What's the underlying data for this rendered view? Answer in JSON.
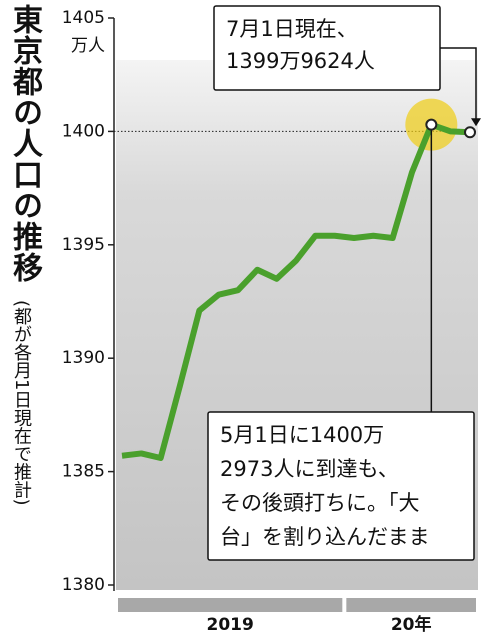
{
  "chart_data": {
    "type": "line",
    "title": "東京都の人口の推移",
    "subtitle": "(都が各月1日現在で推計)",
    "y_unit": "万人",
    "categories": [
      null,
      null,
      null,
      null,
      null,
      null,
      null,
      null,
      null,
      null,
      null,
      null,
      null,
      null,
      null,
      null,
      null,
      null,
      null
    ],
    "x_groups": [
      {
        "label": "2019",
        "count": 12
      },
      {
        "label": "20年",
        "count": 7
      }
    ],
    "series": [
      {
        "name": "人口",
        "color": "#4aa02c",
        "values": [
          1385.7,
          1385.8,
          1385.6,
          1388.8,
          1392.1,
          1392.8,
          1393.0,
          1393.9,
          1393.5,
          1394.3,
          1395.4,
          1395.4,
          1395.3,
          1395.4,
          1395.3,
          1398.2,
          1400.2973,
          1400.0,
          1399.9624
        ]
      }
    ],
    "ylim": [
      1380,
      1405
    ],
    "yticks": [
      1380,
      1385,
      1390,
      1395,
      1400,
      1405
    ],
    "reference_line": 1400,
    "annotations": [
      {
        "lines": [
          "7月1日現在、",
          "1399万9624人"
        ],
        "point": 18
      },
      {
        "lines": [
          "5月1日に1400万",
          "2973人に到達も、",
          "その後頭打ちに。「大",
          "台」を割り込んだまま"
        ],
        "point": 16
      }
    ]
  }
}
